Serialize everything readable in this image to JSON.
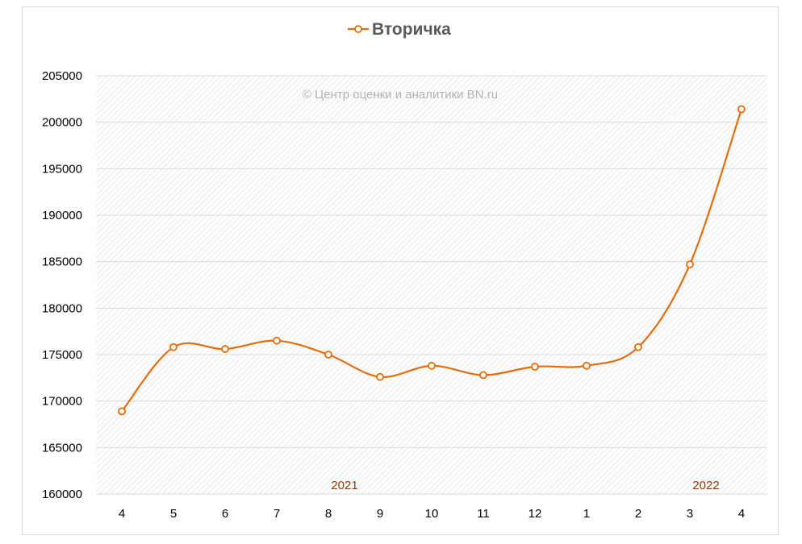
{
  "chart_data": {
    "type": "line",
    "title": "Вторичка",
    "watermark": "© Центр оценки и аналитики BN.ru",
    "categories": [
      "4",
      "5",
      "6",
      "7",
      "8",
      "9",
      "10",
      "11",
      "12",
      "1",
      "2",
      "3",
      "4"
    ],
    "year_labels": [
      {
        "label": "2021",
        "category_index": 4
      },
      {
        "label": "2022",
        "category_index": 11
      }
    ],
    "series": [
      {
        "name": "Вторичка",
        "color": "#e46c0a",
        "values": [
          168900,
          175800,
          175600,
          176500,
          175000,
          172600,
          173800,
          172800,
          173700,
          173800,
          175800,
          184700,
          201400
        ]
      }
    ],
    "ylim": [
      160000,
      205000
    ],
    "ytick_step": 5000,
    "yticks": [
      "205000",
      "200000",
      "195000",
      "190000",
      "185000",
      "180000",
      "175000",
      "170000",
      "165000",
      "160000"
    ],
    "grid": true,
    "legend": "top-center",
    "smooth": true
  }
}
